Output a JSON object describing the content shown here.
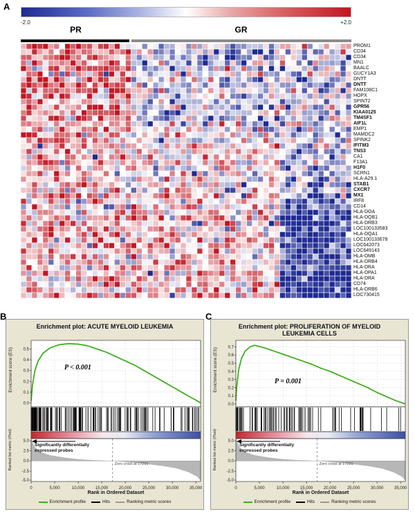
{
  "figure": {
    "panel_labels": {
      "a": "A",
      "b": "B",
      "c": "C"
    }
  },
  "chart_data": [
    {
      "type": "heatmap",
      "colorbar": {
        "min_label": "-2.0",
        "max_label": "+2.0"
      },
      "color_low": "#1e2a92",
      "color_high": "#c11622",
      "value_range": [
        -2,
        2
      ],
      "groups": [
        {
          "label": "PR",
          "columns": 20,
          "bar_color": "#0a0a0a"
        },
        {
          "label": "GR",
          "columns": 40,
          "bar_color": "#8c8c8c"
        }
      ],
      "right_block_columns": 13,
      "noise_sd": 0.85,
      "seed": 1234,
      "rows": [
        {
          "name": "PROM1",
          "bold": false,
          "means": [
            1.2,
            -0.5,
            -0.3
          ]
        },
        {
          "name": "CD34",
          "bold": false,
          "means": [
            1.2,
            -0.6,
            -0.3
          ]
        },
        {
          "name": "CD34",
          "bold": false,
          "means": [
            1.1,
            -0.5,
            -0.4
          ]
        },
        {
          "name": "MN1",
          "bold": false,
          "means": [
            1.0,
            -0.5,
            -0.3
          ]
        },
        {
          "name": "BAALC",
          "bold": false,
          "means": [
            1.1,
            -0.4,
            -0.4
          ]
        },
        {
          "name": "GUCY1A3",
          "bold": false,
          "means": [
            0.9,
            -0.4,
            -0.3
          ]
        },
        {
          "name": "DNTT",
          "bold": false,
          "means": [
            1.0,
            -0.5,
            -0.4
          ]
        },
        {
          "name": "DNTT",
          "bold": true,
          "means": [
            1.2,
            -0.6,
            -0.5
          ]
        },
        {
          "name": "FAM108C1",
          "bold": false,
          "means": [
            0.9,
            -0.3,
            -0.4
          ]
        },
        {
          "name": "HOPX",
          "bold": false,
          "means": [
            0.9,
            -0.3,
            -0.3
          ]
        },
        {
          "name": "SPINT2",
          "bold": false,
          "means": [
            0.8,
            -0.2,
            -0.4
          ]
        },
        {
          "name": "GPR56",
          "bold": true,
          "means": [
            1.0,
            -0.4,
            -0.5
          ]
        },
        {
          "name": "KIAA0125",
          "bold": true,
          "means": [
            1.1,
            -0.4,
            -0.6
          ]
        },
        {
          "name": "TM4SF1",
          "bold": true,
          "means": [
            1.0,
            -0.3,
            -0.5
          ]
        },
        {
          "name": "AIF1L",
          "bold": true,
          "means": [
            0.9,
            -0.3,
            -0.5
          ]
        },
        {
          "name": "EMP1",
          "bold": false,
          "means": [
            0.7,
            0.0,
            -0.4
          ]
        },
        {
          "name": "MAMDC2",
          "bold": false,
          "means": [
            0.7,
            -0.1,
            -0.4
          ]
        },
        {
          "name": "SPINK2",
          "bold": false,
          "means": [
            0.8,
            -0.1,
            -0.5
          ]
        },
        {
          "name": "IFITM3",
          "bold": true,
          "means": [
            0.6,
            0.2,
            -0.5
          ]
        },
        {
          "name": "TNS3",
          "bold": true,
          "means": [
            0.6,
            0.2,
            -0.4
          ]
        },
        {
          "name": "CA1",
          "bold": false,
          "means": [
            0.5,
            0.1,
            -0.3
          ]
        },
        {
          "name": "F13A1",
          "bold": false,
          "means": [
            0.5,
            0.1,
            -0.3
          ]
        },
        {
          "name": "H1F0",
          "bold": true,
          "means": [
            0.6,
            0.2,
            -0.5
          ]
        },
        {
          "name": "SCRN1",
          "bold": false,
          "means": [
            0.5,
            0.2,
            -0.4
          ]
        },
        {
          "name": "HLA-A29.1",
          "bold": false,
          "means": [
            0.5,
            0.2,
            -0.5
          ]
        },
        {
          "name": "STAB1",
          "bold": true,
          "means": [
            0.6,
            0.3,
            -0.9
          ]
        },
        {
          "name": "CXCR7",
          "bold": true,
          "means": [
            0.6,
            0.3,
            -0.9
          ]
        },
        {
          "name": "MX1",
          "bold": true,
          "means": [
            0.5,
            0.3,
            -1.0
          ]
        },
        {
          "name": "IRF8",
          "bold": false,
          "means": [
            0.4,
            0.4,
            -1.3
          ]
        },
        {
          "name": "CD14",
          "bold": false,
          "means": [
            0.4,
            0.4,
            -1.3
          ]
        },
        {
          "name": "HLA-DOA",
          "bold": false,
          "means": [
            0.5,
            0.5,
            -1.8
          ]
        },
        {
          "name": "HLA-DQB1",
          "bold": false,
          "means": [
            0.5,
            0.5,
            -1.8
          ]
        },
        {
          "name": "HLA-DRB3",
          "bold": false,
          "means": [
            0.4,
            0.5,
            -1.8
          ]
        },
        {
          "name": "LOC100133583",
          "bold": false,
          "means": [
            0.5,
            0.4,
            -1.8
          ]
        },
        {
          "name": "HLA-DQA1",
          "bold": false,
          "means": [
            0.5,
            0.5,
            -1.8
          ]
        },
        {
          "name": "LOC100133678",
          "bold": false,
          "means": [
            0.4,
            0.4,
            -1.8
          ]
        },
        {
          "name": "LOC642073",
          "bold": false,
          "means": [
            0.5,
            0.5,
            -1.8
          ]
        },
        {
          "name": "LOC649143",
          "bold": false,
          "means": [
            0.4,
            0.5,
            -1.8
          ]
        },
        {
          "name": "HLA-DMB",
          "bold": false,
          "means": [
            0.5,
            0.4,
            -1.8
          ]
        },
        {
          "name": "HLA-DRB4",
          "bold": false,
          "means": [
            0.5,
            0.5,
            -1.8
          ]
        },
        {
          "name": "HLA-DRA",
          "bold": false,
          "means": [
            0.4,
            0.5,
            -1.8
          ]
        },
        {
          "name": "HLA-DPA1",
          "bold": false,
          "means": [
            0.5,
            0.4,
            -1.8
          ]
        },
        {
          "name": "HLA-DRA",
          "bold": false,
          "means": [
            0.5,
            0.5,
            -1.8
          ]
        },
        {
          "name": "CD74",
          "bold": false,
          "means": [
            0.4,
            0.5,
            -1.8
          ]
        },
        {
          "name": "HLA-DRB6",
          "bold": false,
          "means": [
            0.5,
            0.4,
            -1.8
          ]
        },
        {
          "name": "LOC730415",
          "bold": false,
          "means": [
            0.5,
            0.5,
            -1.8
          ]
        }
      ]
    },
    {
      "type": "line",
      "id": "gsea-b",
      "title_lines": [
        "Enrichment plot: ACUTE MYELOID LEUKEMIA"
      ],
      "p_text": "P < 0.001",
      "p_pos": [
        84,
        64
      ],
      "es_ylabel": "Enrichment score (ES)",
      "metric_ylabel": "Ranked list metric (tTest)",
      "xlabel": "Rank in Ordered Dataset",
      "es_ticks": [
        0.5,
        0.4,
        0.3,
        0.2,
        0.1,
        0.0
      ],
      "es_axis": [
        -0.035,
        0.58
      ],
      "x_max": 36000,
      "x_ticks": [
        {
          "v": 0,
          "label": "0"
        },
        {
          "v": 5000,
          "label": "5,000"
        },
        {
          "v": 10000,
          "label": "10,000"
        },
        {
          "v": 15000,
          "label": "15,000"
        },
        {
          "v": 20000,
          "label": "20,000"
        },
        {
          "v": 25000,
          "label": "25,000"
        },
        {
          "v": 30000,
          "label": "30,000"
        },
        {
          "v": 35000,
          "label": "35,000"
        }
      ],
      "curve_color": "#3fae1f",
      "es_curve": [
        [
          0,
          0.02
        ],
        [
          300,
          0.17
        ],
        [
          800,
          0.3
        ],
        [
          1500,
          0.39
        ],
        [
          2500,
          0.46
        ],
        [
          4000,
          0.51
        ],
        [
          6000,
          0.54
        ],
        [
          8000,
          0.55
        ],
        [
          10000,
          0.545
        ],
        [
          12000,
          0.53
        ],
        [
          14000,
          0.5
        ],
        [
          16000,
          0.47
        ],
        [
          18000,
          0.43
        ],
        [
          20000,
          0.39
        ],
        [
          22000,
          0.35
        ],
        [
          24000,
          0.3
        ],
        [
          26000,
          0.25
        ],
        [
          28000,
          0.2
        ],
        [
          30000,
          0.15
        ],
        [
          32000,
          0.1
        ],
        [
          34000,
          0.05
        ],
        [
          35500,
          0.015
        ],
        [
          36000,
          0.0
        ]
      ],
      "hits": {
        "n": 170,
        "bias": 2.1,
        "seed": 7
      },
      "strip_stops": [
        [
          0,
          "#c2272d"
        ],
        [
          0.2,
          "#df8390"
        ],
        [
          0.42,
          "#f6e6ec"
        ],
        [
          0.55,
          "#e8eaf4"
        ],
        [
          0.72,
          "#93a3d2"
        ],
        [
          1,
          "#3c4fa1"
        ]
      ],
      "zero_cross": 17291,
      "zero_cross_label": "Zero cross at 17291",
      "sig_lines": [
        "Significantly differentially",
        "expressed probes"
      ],
      "metric_ticks": [
        {
          "label": "5.0",
          "f": 0.05
        },
        {
          "label": "2.5",
          "f": 0.28
        },
        {
          "label": "0.0",
          "f": 0.52
        },
        {
          "label": "-2.5",
          "f": 0.76
        },
        {
          "label": "-5.0",
          "f": 0.97
        }
      ],
      "metric_vmax": 1.0,
      "metric_vmin": -0.65,
      "zero_frac": 0.52,
      "metric_curve": [
        [
          0,
          1.0
        ],
        [
          800,
          0.62
        ],
        [
          2000,
          0.4
        ],
        [
          4000,
          0.26
        ],
        [
          7000,
          0.15
        ],
        [
          10000,
          0.08
        ],
        [
          13000,
          0.04
        ],
        [
          15500,
          0.02
        ],
        [
          17291,
          0
        ],
        [
          20000,
          -0.035
        ],
        [
          24000,
          -0.09
        ],
        [
          28000,
          -0.16
        ],
        [
          31000,
          -0.24
        ],
        [
          33500,
          -0.36
        ],
        [
          35300,
          -0.5
        ],
        [
          36000,
          -0.62
        ]
      ],
      "legend": [
        "Enrichment profile",
        "Hits",
        "Ranking metric scores"
      ],
      "legend_colors": [
        "#3fae1f",
        "#000000",
        "#999999"
      ],
      "panel_bg": "#e9e5d3"
    },
    {
      "type": "line",
      "id": "gsea-c",
      "title_lines": [
        "Enrichment plot: PROLIFERATION OF MYELOID",
        "LEUKEMIA CELLS"
      ],
      "p_text": "P = 0.001",
      "p_pos": [
        92,
        84
      ],
      "es_ylabel": "Enrichment score (ES)",
      "metric_ylabel": "Ranked list metric (tTest)",
      "xlabel": "Rank in Ordered Dataset",
      "es_ticks": [
        0.7,
        0.6,
        0.5,
        0.4,
        0.3,
        0.2,
        0.1,
        0.0
      ],
      "es_axis": [
        -0.035,
        0.78
      ],
      "x_max": 36000,
      "x_ticks": [
        {
          "v": 0,
          "label": "0"
        },
        {
          "v": 5000,
          "label": "5,000"
        },
        {
          "v": 10000,
          "label": "10,000"
        },
        {
          "v": 15000,
          "label": "15,000"
        },
        {
          "v": 20000,
          "label": "20,000"
        },
        {
          "v": 25000,
          "label": "25,000"
        },
        {
          "v": 30000,
          "label": "30,000"
        },
        {
          "v": 35000,
          "label": "35,000"
        }
      ],
      "curve_color": "#3fae1f",
      "es_curve": [
        [
          0,
          0.04
        ],
        [
          200,
          0.22
        ],
        [
          600,
          0.42
        ],
        [
          1200,
          0.56
        ],
        [
          2000,
          0.65
        ],
        [
          3000,
          0.7
        ],
        [
          4000,
          0.72
        ],
        [
          5000,
          0.705
        ],
        [
          6500,
          0.68
        ],
        [
          8000,
          0.65
        ],
        [
          10000,
          0.61
        ],
        [
          12000,
          0.57
        ],
        [
          14000,
          0.53
        ],
        [
          16000,
          0.49
        ],
        [
          18000,
          0.44
        ],
        [
          20000,
          0.4
        ],
        [
          22000,
          0.35
        ],
        [
          24000,
          0.3
        ],
        [
          26000,
          0.25
        ],
        [
          28000,
          0.2
        ],
        [
          30000,
          0.14
        ],
        [
          32000,
          0.09
        ],
        [
          34000,
          0.04
        ],
        [
          36000,
          0.0
        ]
      ],
      "hits": {
        "n": 95,
        "bias": 1.8,
        "seed": 11
      },
      "strip_stops": [
        [
          0,
          "#c2272d"
        ],
        [
          0.2,
          "#df8390"
        ],
        [
          0.42,
          "#f6e6ec"
        ],
        [
          0.55,
          "#e8eaf4"
        ],
        [
          0.72,
          "#93a3d2"
        ],
        [
          1,
          "#3c4fa1"
        ]
      ],
      "zero_cross": 17291,
      "zero_cross_label": "Zero cross at 17291",
      "sig_lines": [
        "Significantly differentially",
        "expressed probes"
      ],
      "metric_ticks": [
        {
          "label": "5.0",
          "f": 0.05
        },
        {
          "label": "2.5",
          "f": 0.28
        },
        {
          "label": "0.0",
          "f": 0.52
        },
        {
          "label": "-2.5",
          "f": 0.76
        },
        {
          "label": "-5.0",
          "f": 0.97
        }
      ],
      "metric_vmax": 1.0,
      "metric_vmin": -0.65,
      "zero_frac": 0.52,
      "metric_curve": [
        [
          0,
          1.0
        ],
        [
          800,
          0.62
        ],
        [
          2000,
          0.4
        ],
        [
          4000,
          0.26
        ],
        [
          7000,
          0.15
        ],
        [
          10000,
          0.08
        ],
        [
          13000,
          0.04
        ],
        [
          15500,
          0.02
        ],
        [
          17291,
          0
        ],
        [
          20000,
          -0.035
        ],
        [
          24000,
          -0.09
        ],
        [
          28000,
          -0.16
        ],
        [
          31000,
          -0.24
        ],
        [
          33500,
          -0.36
        ],
        [
          35300,
          -0.5
        ],
        [
          36000,
          -0.62
        ]
      ],
      "legend": [
        "Enrichment profile",
        "Hits",
        "Ranking metric scores"
      ],
      "legend_colors": [
        "#3fae1f",
        "#000000",
        "#999999"
      ],
      "panel_bg": "#e9e5d3"
    }
  ]
}
